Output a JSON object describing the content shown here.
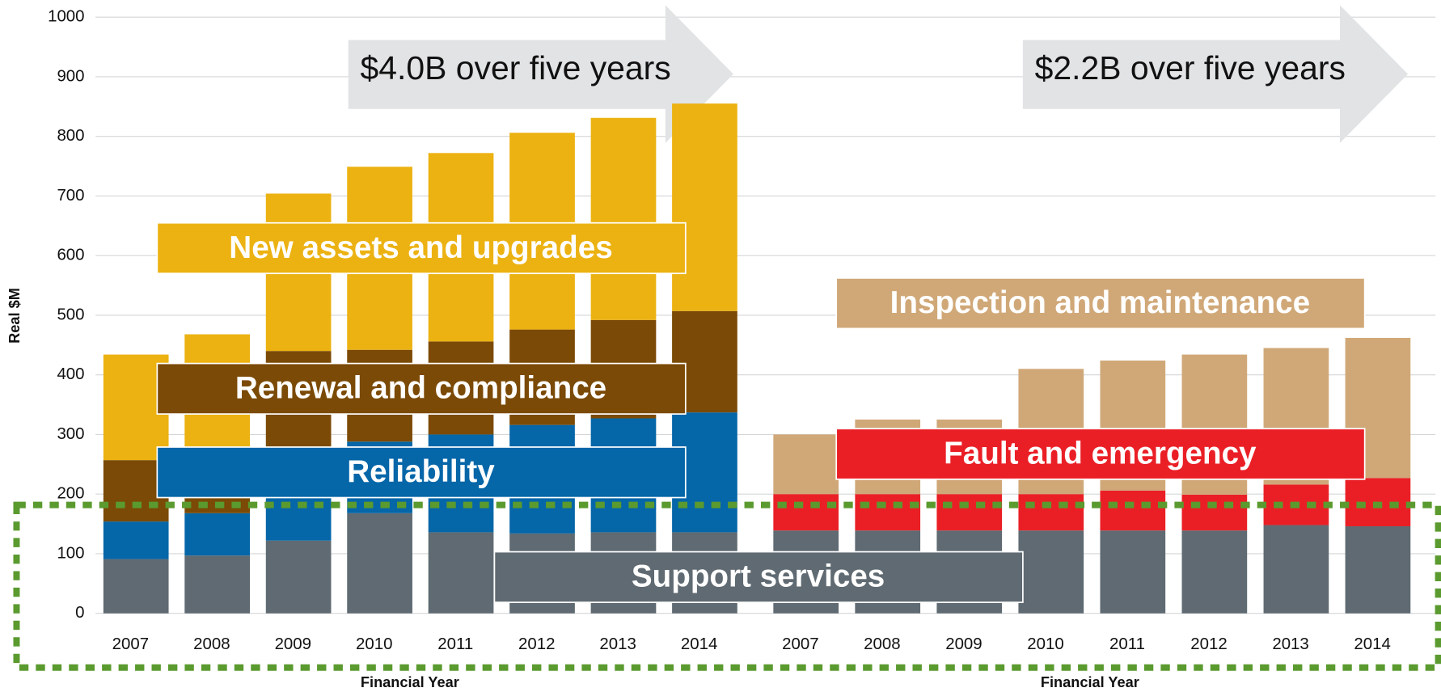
{
  "chart_data": [
    {
      "type": "bar",
      "stacked": true,
      "ylabel": "Real $M",
      "xlabel": "Financial Year",
      "annotation": "$4.0B over five years",
      "categories": [
        "2007",
        "2008",
        "2009",
        "2010",
        "2011",
        "2012",
        "2013",
        "2014"
      ],
      "series": [
        {
          "name": "Support services",
          "color": "#5f6a72",
          "values": [
            91,
            97,
            122,
            168,
            136,
            134,
            136,
            136
          ]
        },
        {
          "name": "Reliability",
          "color": "#0566a8",
          "values": [
            63,
            71,
            148,
            120,
            164,
            182,
            191,
            201
          ]
        },
        {
          "name": "Renewal and compliance",
          "color": "#7b4a06",
          "values": [
            103,
            112,
            170,
            154,
            156,
            160,
            165,
            170
          ]
        },
        {
          "name": "New assets and upgrades",
          "color": "#ecb212",
          "values": [
            177,
            188,
            264,
            307,
            316,
            330,
            339,
            348
          ]
        }
      ],
      "ylim": [
        0,
        1000
      ],
      "yticks": [
        0,
        100,
        200,
        300,
        400,
        500,
        600,
        700,
        800,
        900,
        1000
      ],
      "grid": true
    },
    {
      "type": "bar",
      "stacked": true,
      "xlabel": "Financial Year",
      "annotation": "$2.2B over five years",
      "categories": [
        "2007",
        "2008",
        "2009",
        "2010",
        "2011",
        "2012",
        "2013",
        "2014"
      ],
      "series": [
        {
          "name": "Support services",
          "color": "#5f6a72",
          "values": [
            139,
            139,
            139,
            139,
            139,
            139,
            148,
            146
          ]
        },
        {
          "name": "Fault and emergency",
          "color": "#ea1f26",
          "values": [
            61,
            61,
            61,
            61,
            67,
            60,
            68,
            81
          ]
        },
        {
          "name": "Inspection and maintenance",
          "color": "#d0a878",
          "values": [
            100,
            125,
            125,
            210,
            218,
            235,
            229,
            235
          ]
        }
      ],
      "ylim": [
        0,
        1000
      ]
    }
  ]
}
